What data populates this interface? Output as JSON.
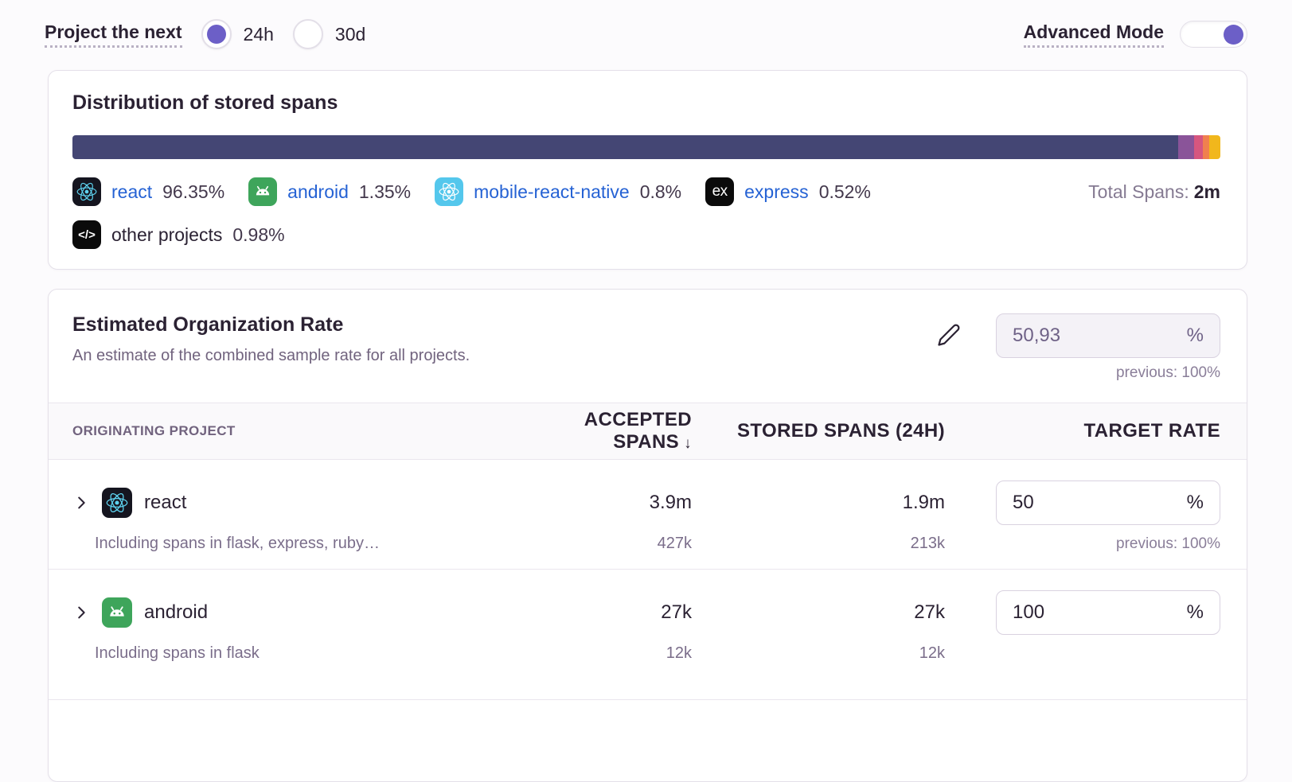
{
  "header_controls": {
    "project_next_label": "Project the next",
    "duration_options": [
      {
        "label": "24h",
        "selected": true
      },
      {
        "label": "30d",
        "selected": false
      }
    ],
    "advanced_mode_label": "Advanced Mode",
    "advanced_mode_enabled": true
  },
  "distribution": {
    "title": "Distribution of stored spans",
    "total_spans_label": "Total Spans:",
    "total_spans_value": "2m",
    "segments": [
      {
        "name": "react",
        "percent": 96.35,
        "percent_label": "96.35%",
        "color": "#444674",
        "icon": "react-icon"
      },
      {
        "name": "android",
        "percent": 1.35,
        "percent_label": "1.35%",
        "color": "#8A5499",
        "icon": "android-icon"
      },
      {
        "name": "mobile-react-native",
        "percent": 0.8,
        "percent_label": "0.8%",
        "color": "#D6567F",
        "icon": "react-native-icon"
      },
      {
        "name": "express",
        "percent": 0.52,
        "percent_label": "0.52%",
        "color": "#F0804F",
        "icon": "express-icon"
      },
      {
        "name": "other projects",
        "percent": 0.98,
        "percent_label": "0.98%",
        "color": "#F1B71C",
        "icon": "code-icon"
      }
    ]
  },
  "org_rate": {
    "title": "Estimated Organization Rate",
    "description": "An estimate of the combined sample rate for all projects.",
    "value": "50,93",
    "unit": "%",
    "previous": "previous: 100%"
  },
  "table": {
    "headers": {
      "project": "ORIGINATING PROJECT",
      "accepted": "ACCEPTED SPANS",
      "sort_icon": "↓",
      "stored": "STORED SPANS (24H)",
      "rate": "TARGET RATE"
    },
    "rows": [
      {
        "name": "react",
        "icon": "react-icon",
        "accepted": "3.9m",
        "stored": "1.9m",
        "rate_value": "50",
        "rate_unit": "%",
        "sub_label": "Including spans in flask, express, ruby…",
        "sub_accepted": "427k",
        "sub_stored": "213k",
        "sub_previous": "previous: 100%"
      },
      {
        "name": "android",
        "icon": "android-icon",
        "accepted": "27k",
        "stored": "27k",
        "rate_value": "100",
        "rate_unit": "%",
        "sub_label": "Including spans in flask",
        "sub_accepted": "12k",
        "sub_stored": "12k",
        "sub_previous": ""
      }
    ]
  },
  "colors": {
    "accent": "#6C5FC7",
    "link": "#2562D4"
  },
  "chart_data": {
    "type": "bar",
    "title": "Distribution of stored spans",
    "layout": "single horizontal stacked bar, no axes, legend below",
    "categories": [
      "react",
      "android",
      "mobile-react-native",
      "express",
      "other projects"
    ],
    "values": [
      96.35,
      1.35,
      0.8,
      0.52,
      0.98
    ],
    "unit": "%",
    "colors": [
      "#444674",
      "#8A5499",
      "#D6567F",
      "#F0804F",
      "#F1B71C"
    ],
    "total_spans": "2m"
  }
}
